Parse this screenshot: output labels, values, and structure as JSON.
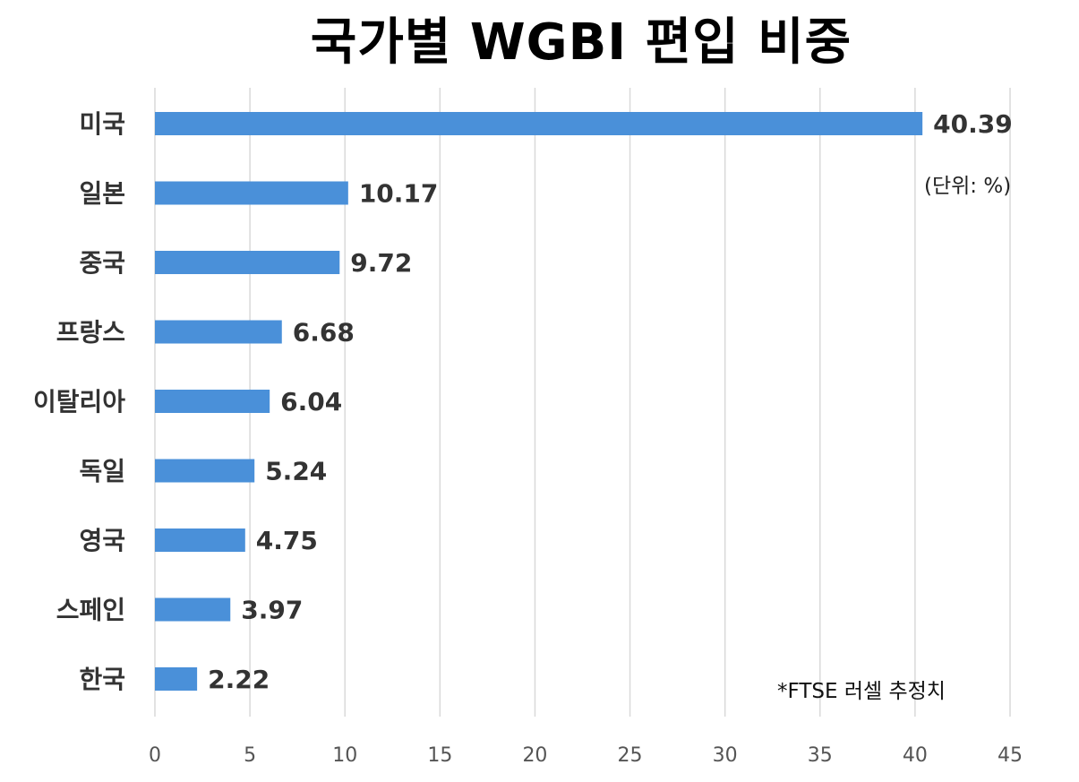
{
  "chart_data": {
    "type": "bar",
    "orientation": "horizontal",
    "title": "국가별 WGBI 편입 비중",
    "categories": [
      "미국",
      "일본",
      "중국",
      "프랑스",
      "이탈리아",
      "독일",
      "영국",
      "스페인",
      "한국"
    ],
    "values": [
      40.39,
      10.17,
      9.72,
      6.68,
      6.04,
      5.24,
      4.75,
      3.97,
      2.22
    ],
    "value_labels": [
      "40.39",
      "10.17",
      "9.72",
      "6.68",
      "6.04",
      "5.24",
      "4.75",
      "3.97",
      "2.22"
    ],
    "xlim": [
      0,
      45
    ],
    "x_ticks": [
      "0",
      "5",
      "10",
      "15",
      "20",
      "25",
      "30",
      "35",
      "40",
      "45"
    ],
    "unit_note": "(단위: %)",
    "source_note": "*FTSE 러셀 추정치",
    "grid": "vertical",
    "bar_color": "#4A90D9",
    "gridline_color": "#D9D9D9",
    "label_color": "#333333"
  }
}
